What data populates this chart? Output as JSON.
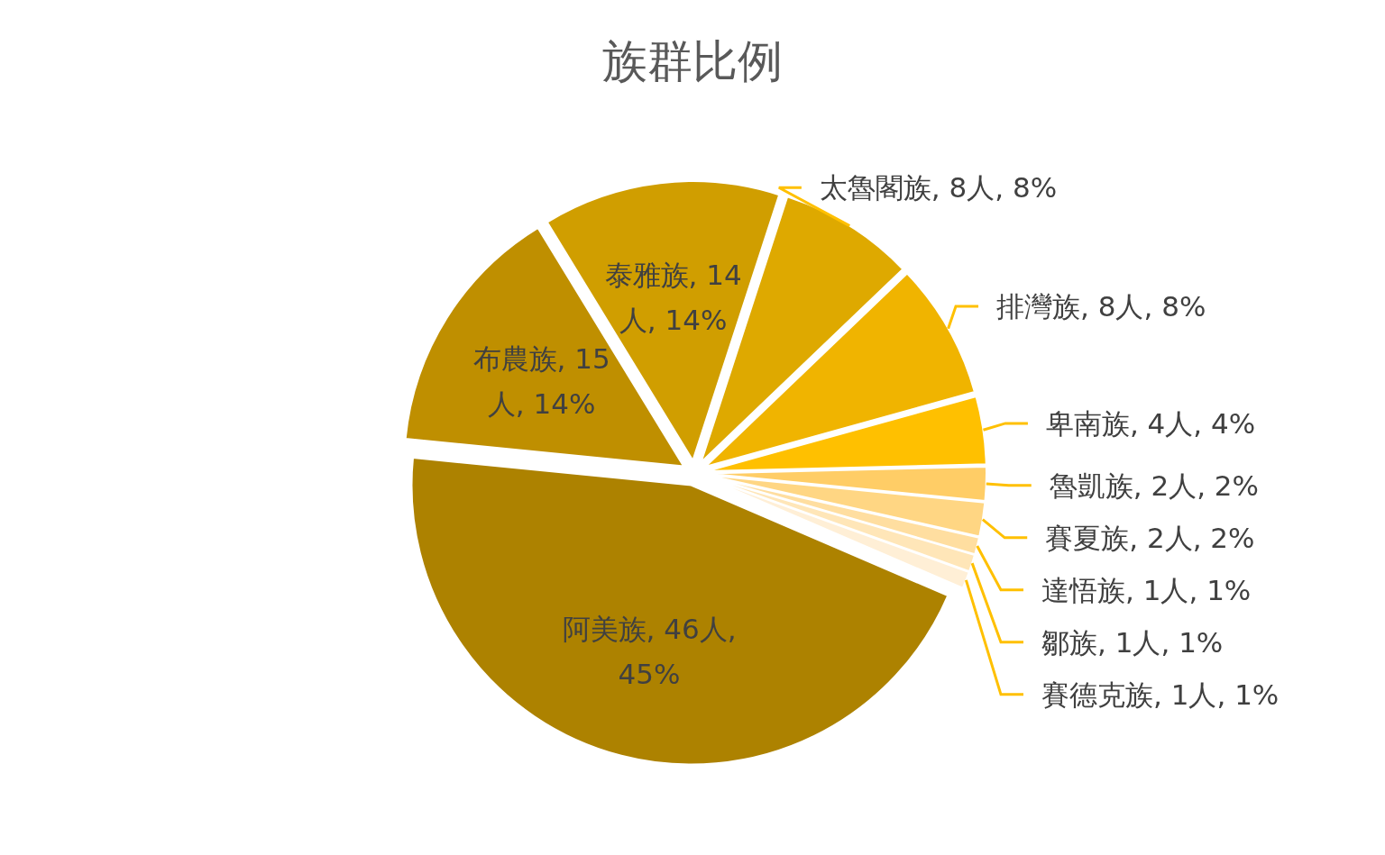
{
  "chart_data": {
    "type": "pie",
    "title": "族群比例",
    "categories": [
      "太魯閣族",
      "排灣族",
      "卑南族",
      "魯凱族",
      "賽夏族",
      "達悟族",
      "鄒族",
      "賽德克族",
      "阿美族",
      "布農族",
      "泰雅族"
    ],
    "values": [
      8,
      8,
      4,
      2,
      2,
      1,
      1,
      1,
      46,
      15,
      14
    ],
    "value_labels": [
      "8人, 8%",
      "8人, 8%",
      "4人, 4%",
      "2人, 2%",
      "2人, 2%",
      "1人, 1%",
      "1人, 1%",
      "1人, 1%",
      "46人, 45%",
      "15人, 14%",
      "14人, 14%"
    ],
    "colors": [
      "#dea900",
      "#f0b400",
      "#ffc000",
      "#ffcd66",
      "#ffd683",
      "#ffdea0",
      "#ffe6b8",
      "#ffefd6",
      "#ad8200",
      "#bf8f00",
      "#d09e00"
    ]
  }
}
